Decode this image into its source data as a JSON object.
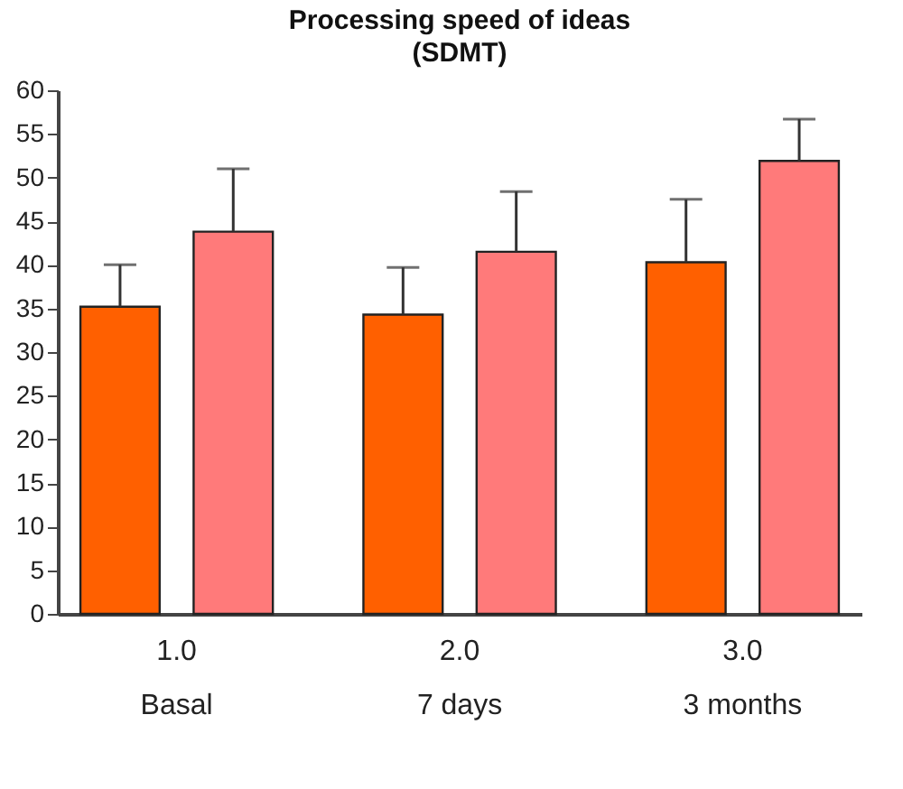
{
  "chart_data": {
    "type": "bar",
    "title": "Processing speed of ideas\n(SDMT)",
    "categories": [
      "1.0\nBasal",
      "2.0\n7 days",
      "3.0\n3 months"
    ],
    "series": [
      {
        "color": "#ff6000",
        "values": [
          35.2,
          34.3,
          40.3
        ],
        "errors": [
          [
            35.2,
            40
          ],
          [
            34.3,
            39.7
          ],
          [
            40.3,
            47.5
          ]
        ]
      },
      {
        "color": "#ff7a7a",
        "values": [
          43.8,
          41.5,
          51.9
        ],
        "errors": [
          [
            43.8,
            51
          ],
          [
            41.5,
            48.4
          ],
          [
            51.9,
            56.7
          ]
        ]
      }
    ],
    "ylim": [
      0,
      60
    ],
    "yticks": [
      0,
      5,
      10,
      15,
      20,
      25,
      30,
      35,
      40,
      45,
      50,
      55,
      60
    ],
    "grid": false,
    "legend": false
  }
}
